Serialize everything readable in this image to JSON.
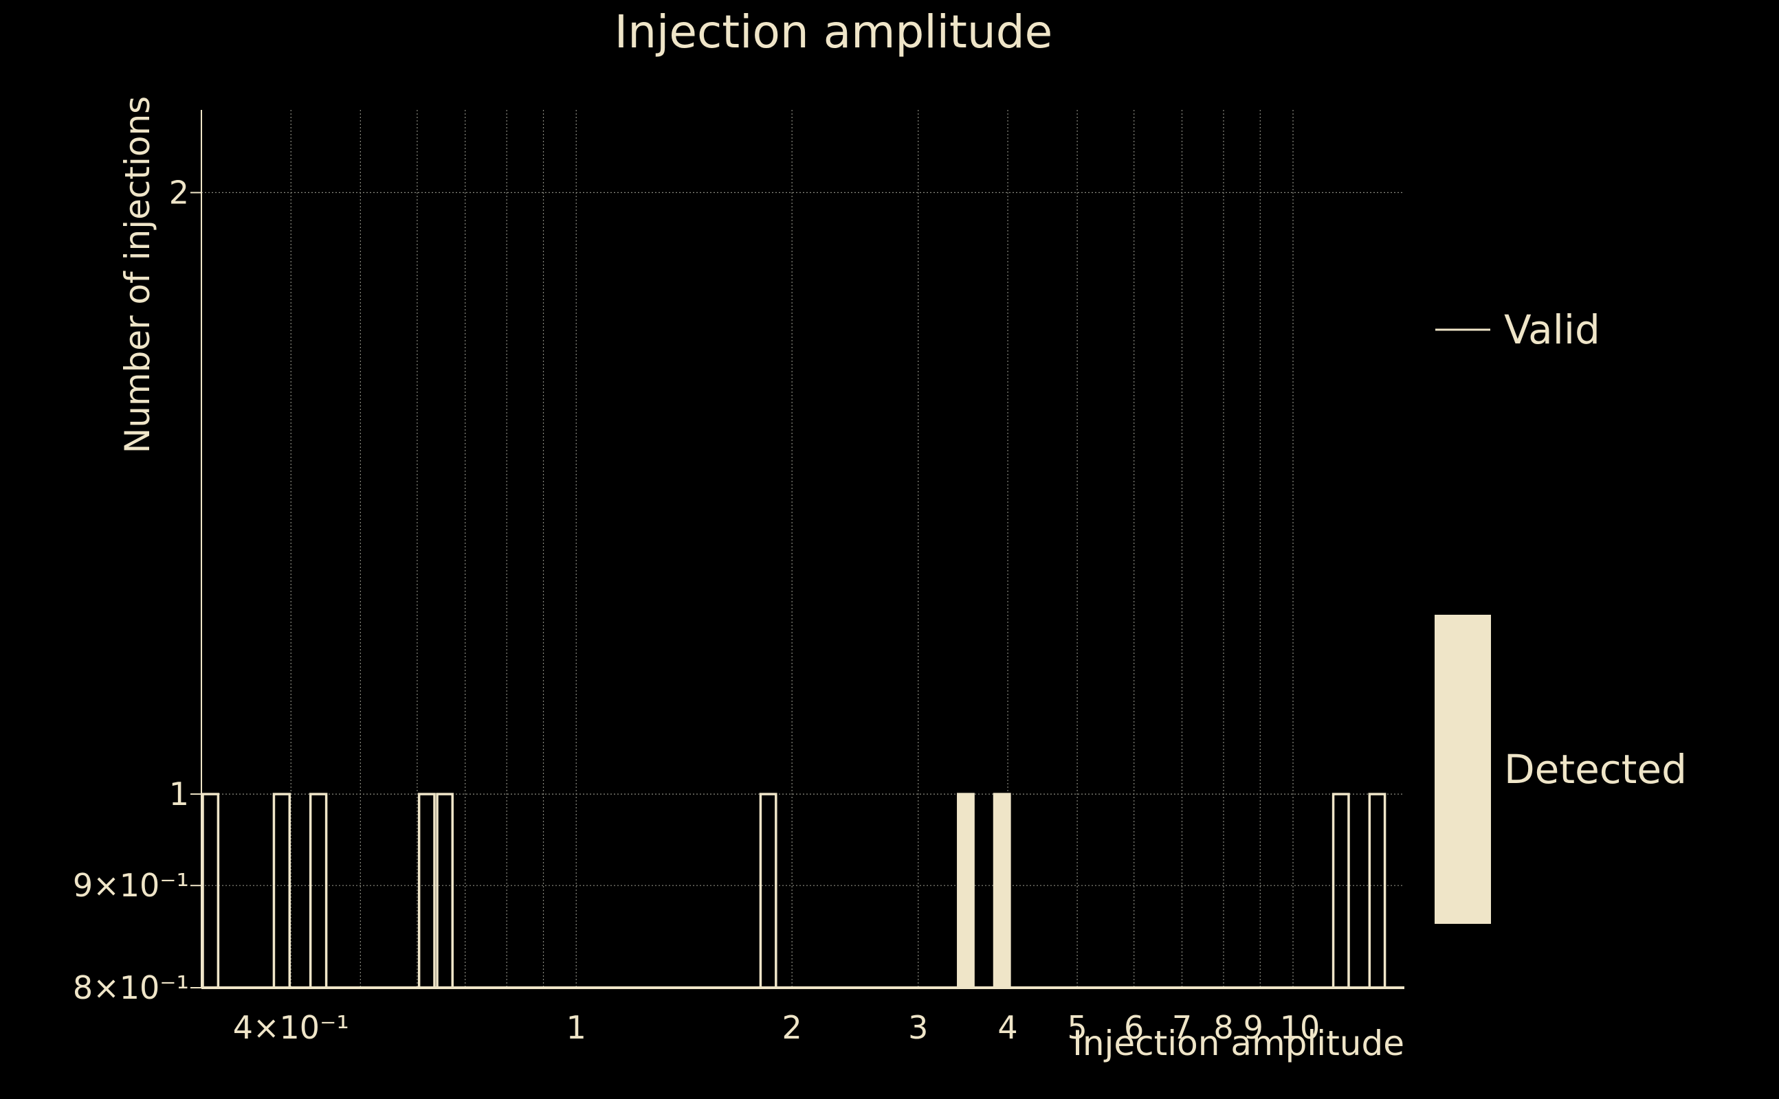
{
  "chart_data": {
    "type": "bar",
    "title": "Injection amplitude",
    "xlabel": "Injection amplitude",
    "ylabel": "Number of injections",
    "x_scale": "log",
    "y_scale": "log",
    "xlim": [
      0.3,
      14.3
    ],
    "ylim": [
      0.8,
      2.2
    ],
    "grid": true,
    "legend_placement": "right",
    "x_ticks": [
      {
        "value": 0.4,
        "label": "4×10⁻¹"
      },
      {
        "value": 1,
        "label": "1"
      },
      {
        "value": 2,
        "label": "2"
      },
      {
        "value": 3,
        "label": "3"
      },
      {
        "value": 4,
        "label": "4"
      },
      {
        "value": 5,
        "label": "5"
      },
      {
        "value": 6,
        "label": "6"
      },
      {
        "value": 7,
        "label": "7"
      },
      {
        "value": 8,
        "label": "8"
      },
      {
        "value": 9,
        "label": "9"
      },
      {
        "value": 10,
        "label": "10"
      }
    ],
    "x_minor_grid": [
      0.5,
      0.6,
      0.7,
      0.8,
      0.9
    ],
    "y_ticks": [
      {
        "value": 0.8,
        "label": "8×10⁻¹"
      },
      {
        "value": 0.9,
        "label": "9×10⁻¹"
      },
      {
        "value": 1,
        "label": "1"
      },
      {
        "value": 2,
        "label": "2"
      }
    ],
    "series": [
      {
        "name": "Valid",
        "style": "outline",
        "bins": [
          {
            "x0": 0.3,
            "x1": 0.318,
            "count": 1
          },
          {
            "x0": 0.377,
            "x1": 0.4,
            "count": 1
          },
          {
            "x0": 0.424,
            "x1": 0.45,
            "count": 1
          },
          {
            "x0": 0.601,
            "x1": 0.637,
            "count": 1
          },
          {
            "x0": 0.637,
            "x1": 0.675,
            "count": 1
          },
          {
            "x0": 1.8,
            "x1": 1.908,
            "count": 1
          },
          {
            "x0": 3.395,
            "x1": 3.598,
            "count": 1
          },
          {
            "x0": 3.814,
            "x1": 4.043,
            "count": 1
          },
          {
            "x0": 11.33,
            "x1": 12.01,
            "count": 1
          },
          {
            "x0": 12.73,
            "x1": 13.49,
            "count": 1
          }
        ]
      },
      {
        "name": "Detected",
        "style": "filled",
        "bins": [
          {
            "x0": 3.395,
            "x1": 3.598,
            "count": 1
          },
          {
            "x0": 3.814,
            "x1": 4.043,
            "count": 1
          }
        ]
      }
    ]
  },
  "colors": {
    "background": "#000000",
    "foreground": "#efe5c8",
    "grid": "#8a8a80"
  }
}
